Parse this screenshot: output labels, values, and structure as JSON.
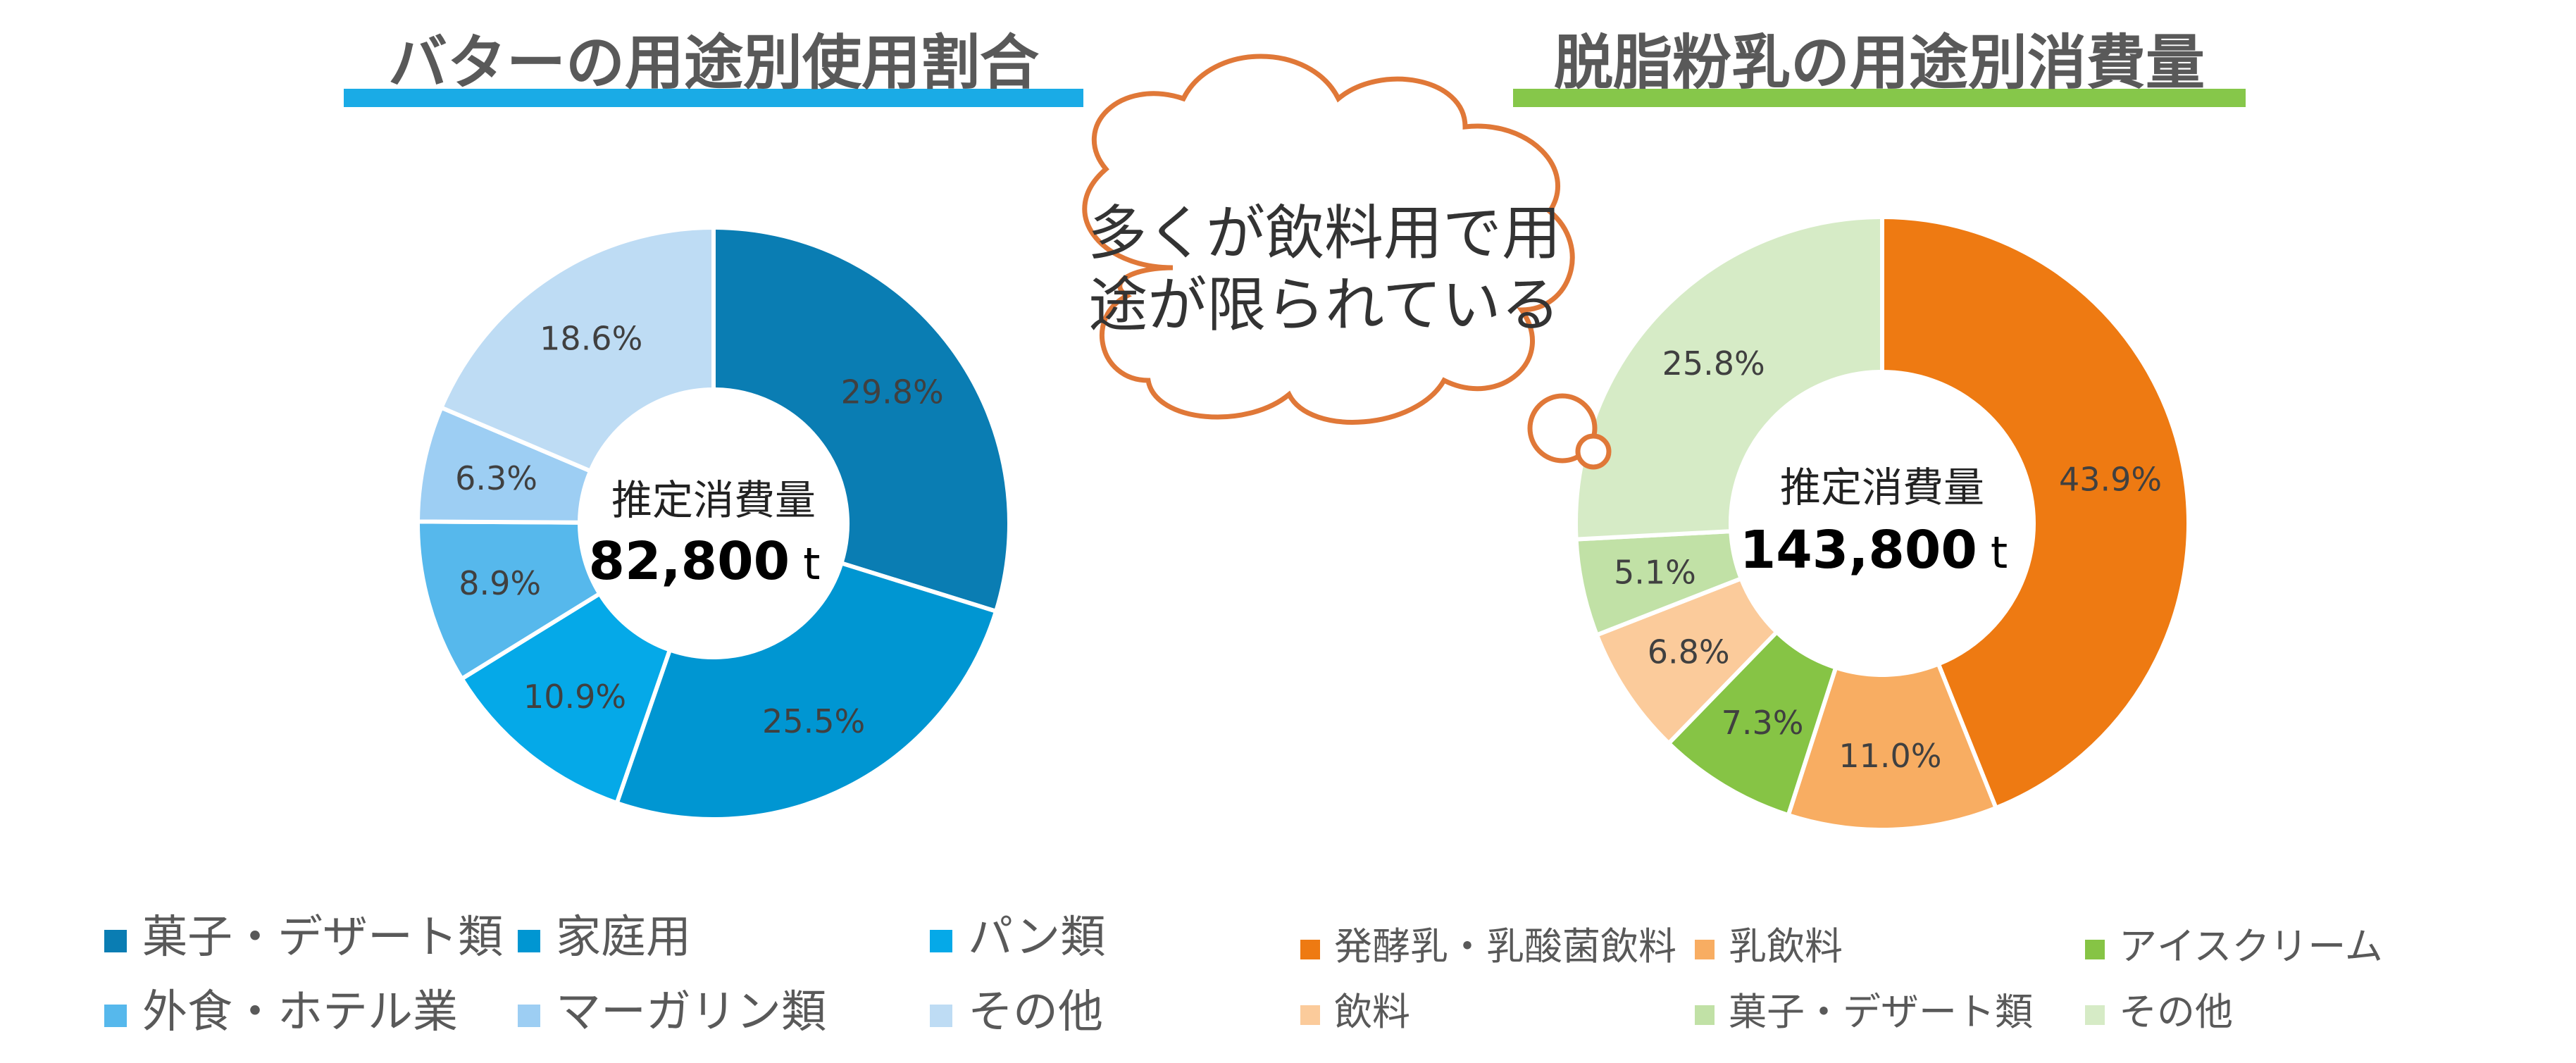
{
  "chart_data": [
    {
      "type": "pie",
      "title": "バターの用途別使用割合",
      "title_underline_color": "#1aabe6",
      "center_label": "推定消費量",
      "center_value": "82,800",
      "center_unit": "t",
      "categories": [
        "菓子・デザート類",
        "家庭用",
        "パン類",
        "外食・ホテル業",
        "マーガリン類",
        "その他"
      ],
      "values": [
        29.8,
        25.5,
        10.9,
        8.9,
        6.3,
        18.6
      ],
      "value_labels": [
        "29.8%",
        "25.5%",
        "10.9%",
        "8.9%",
        "6.3%",
        "18.6%"
      ],
      "colors": [
        "#0a7db3",
        "#0096d2",
        "#05a9e8",
        "#56b8ec",
        "#9dcef3",
        "#bedcf4"
      ],
      "legend_position": "bottom"
    },
    {
      "type": "pie",
      "title": "脱脂粉乳の用途別消費量",
      "title_underline_color": "#86c74a",
      "center_label": "推定消費量",
      "center_value": "143,800",
      "center_unit": "t",
      "categories": [
        "発酵乳・乳酸菌飲料",
        "乳飲料",
        "アイスクリーム",
        "飲料",
        "菓子・デザート類",
        "その他"
      ],
      "values": [
        43.9,
        11.0,
        7.3,
        6.8,
        5.1,
        25.8
      ],
      "value_labels": [
        "43.9%",
        "11.0%",
        "7.3%",
        "6.8%",
        "5.1%",
        "25.8%"
      ],
      "colors": [
        "#ee7a12",
        "#f8ad62",
        "#86c445",
        "#fbcb9b",
        "#c1e1a6",
        "#d6ebc6"
      ],
      "legend_position": "bottom"
    }
  ],
  "annotation": {
    "line1": "多くが飲料用で用",
    "line2": "途が限られている",
    "outline_color": "#e07838"
  }
}
